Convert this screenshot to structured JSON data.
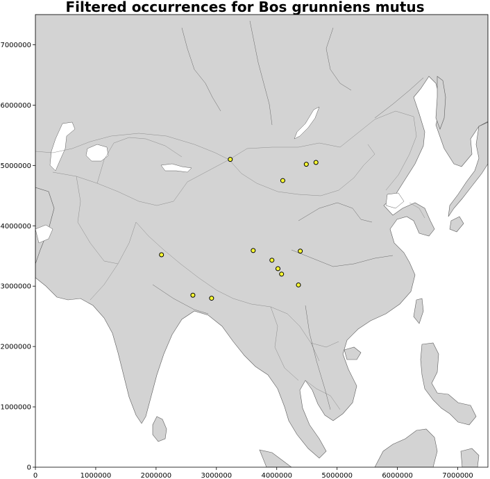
{
  "title": "Filtered occurrences for Bos grunniens mutus",
  "style": {
    "land_color": "#d3d3d3",
    "ocean_color": "#ffffff",
    "marker_fill": "#ffff33",
    "marker_edge": "#000000"
  },
  "chart_data": {
    "type": "scatter",
    "title": "Filtered occurrences for Bos grunniens mutus",
    "xlabel": "",
    "ylabel": "",
    "xlim": [
      0,
      7500000
    ],
    "ylim": [
      0,
      7500000
    ],
    "grid": false,
    "x_ticks": [
      0,
      1000000,
      2000000,
      3000000,
      4000000,
      5000000,
      6000000,
      7000000
    ],
    "y_ticks": [
      0,
      1000000,
      2000000,
      3000000,
      4000000,
      5000000,
      6000000,
      7000000
    ],
    "series": [
      {
        "points": [
          {
            "x": 3230000,
            "y": 5100000
          },
          {
            "x": 4100000,
            "y": 4750000
          },
          {
            "x": 4490000,
            "y": 5020000
          },
          {
            "x": 4650000,
            "y": 5050000
          },
          {
            "x": 3610000,
            "y": 3590000
          },
          {
            "x": 4390000,
            "y": 3580000
          },
          {
            "x": 3920000,
            "y": 3430000
          },
          {
            "x": 4020000,
            "y": 3290000
          },
          {
            "x": 4080000,
            "y": 3200000
          },
          {
            "x": 4360000,
            "y": 3020000
          },
          {
            "x": 2090000,
            "y": 3520000
          },
          {
            "x": 2610000,
            "y": 2850000
          },
          {
            "x": 2920000,
            "y": 2800000
          }
        ]
      }
    ]
  }
}
